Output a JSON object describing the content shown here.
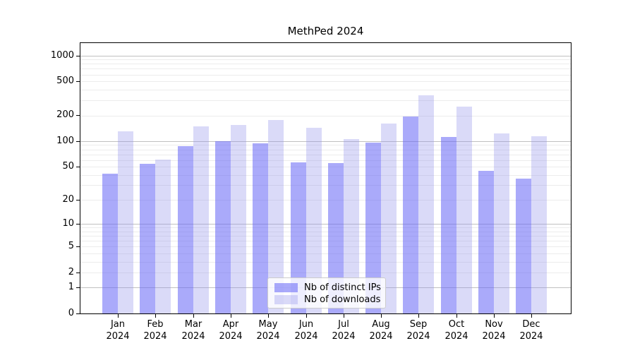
{
  "title": "MethPed 2024",
  "colors": {
    "background": "#ffffff",
    "bar_ips": "rgba(100,100,245,0.55)",
    "bar_downloads": "rgba(150,150,235,0.35)",
    "grid_major": "#c0c0c0",
    "grid_minor": "#ececec",
    "axis": "#000000"
  },
  "legend": {
    "items": [
      {
        "label": "Nb of distinct IPs",
        "color": "rgba(100,100,245,0.55)"
      },
      {
        "label": "Nb of downloads",
        "color": "rgba(150,150,235,0.35)"
      }
    ]
  },
  "y_axis": {
    "ticks": [
      0,
      1,
      2,
      5,
      10,
      20,
      50,
      100,
      200,
      500,
      1000
    ]
  },
  "chart_data": {
    "type": "bar",
    "title": "MethPed 2024",
    "categories": [
      "Jan 2024",
      "Feb 2024",
      "Mar 2024",
      "Apr 2024",
      "May 2024",
      "Jun 2024",
      "Jul 2024",
      "Aug 2024",
      "Sep 2024",
      "Oct 2024",
      "Nov 2024",
      "Dec 2024"
    ],
    "series": [
      {
        "name": "Nb of distinct IPs",
        "values": [
          41,
          54,
          88,
          100,
          94,
          56,
          55,
          96,
          196,
          111,
          45,
          36
        ]
      },
      {
        "name": "Nb of downloads",
        "values": [
          131,
          61,
          148,
          154,
          178,
          143,
          105,
          160,
          346,
          253,
          122,
          115
        ]
      }
    ],
    "y_scale": "log1p",
    "y_ticks": [
      0,
      1,
      2,
      5,
      10,
      20,
      50,
      100,
      200,
      500,
      1000
    ],
    "ylim": [
      0,
      1400
    ],
    "grid": true,
    "legend_position": "lower center",
    "xlabel": "",
    "ylabel": ""
  }
}
